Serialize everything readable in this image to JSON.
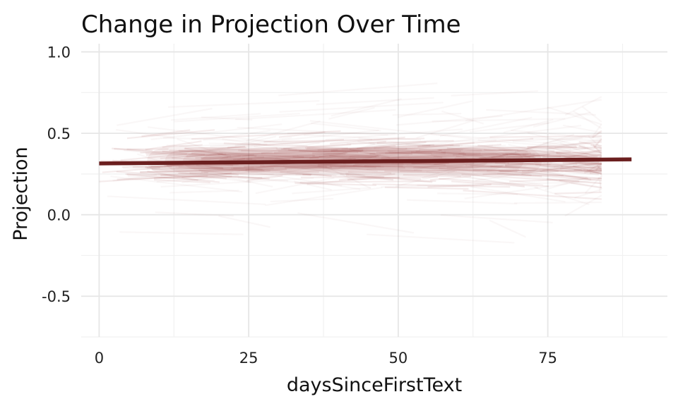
{
  "chart_data": {
    "type": "line",
    "title": "Change in Projection Over Time",
    "xlabel": "daysSinceFirstText",
    "ylabel": "Projection",
    "xlim": [
      -3,
      95
    ],
    "ylim": [
      -0.75,
      1.05
    ],
    "x_ticks": [
      0,
      25,
      50,
      75
    ],
    "x_tick_labels": [
      "0",
      "25",
      "50",
      "75"
    ],
    "y_ticks": [
      -0.5,
      0.0,
      0.5,
      1.0
    ],
    "y_tick_labels": [
      "-0.5",
      "0.0",
      "0.5",
      "1.0"
    ],
    "grid": true,
    "legend": "none",
    "series": [
      {
        "kind": "trend",
        "x": [
          0,
          89
        ],
        "y": [
          0.315,
          0.34
        ],
        "color": "#6b1f1f"
      }
    ],
    "band": {
      "kind": "individual-trajectories",
      "color": "#8b2a2a",
      "x_range": [
        0,
        84
      ],
      "center": 0.33,
      "core_halfwidth": 0.12,
      "outer_halfwidth": 0.3
    }
  }
}
